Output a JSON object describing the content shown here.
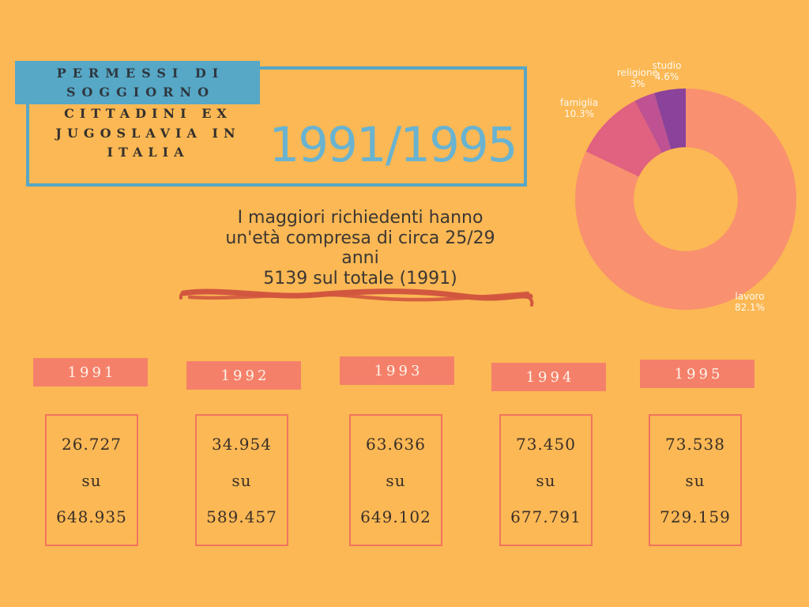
{
  "palette": {
    "background": "#FBB854",
    "blue": "#57A7C6",
    "period_blue": "#69B3D1",
    "salmon": "#F5806A",
    "box_border": "#F2745D",
    "brush_red": "#D2573F",
    "dark_text": "#3A332F"
  },
  "header": {
    "title_line1": "PERMESSI DI",
    "title_line2": "SOGGIORNO",
    "subtitle_line1": "CITTADINI EX",
    "subtitle_line2": "JUGOSLAVIA IN",
    "subtitle_line3": "ITALIA",
    "period": "1991/1995"
  },
  "highlight": {
    "line1": "I maggiori richiedenti hanno",
    "line2": "un'età compresa di circa 25/29",
    "line3": "anni",
    "line4": "5139 sul totale (1991)"
  },
  "chart_data": {
    "type": "pie",
    "donut": true,
    "inner_radius_ratio": 0.47,
    "start_angle_deg": 0,
    "direction": "clockwise",
    "legend": "none",
    "labels_position": "outside",
    "labels": [
      "lavoro",
      "famiglia",
      "religione",
      "studio"
    ],
    "values": [
      82.1,
      10.3,
      3,
      4.6
    ],
    "display_pcts": [
      "82.1%",
      "10.3%",
      "3%",
      "4.6%"
    ],
    "colors": [
      "#F9906F",
      "#E16180",
      "#BE5292",
      "#8A429B"
    ]
  },
  "years": [
    {
      "label": "1991",
      "value": "26.727",
      "su": "su",
      "total": "648.935"
    },
    {
      "label": "1992",
      "value": "34.954",
      "su": "su",
      "total": "589.457"
    },
    {
      "label": "1993",
      "value": "63.636",
      "su": "su",
      "total": "649.102"
    },
    {
      "label": "1994",
      "value": "73.450",
      "su": "su",
      "total": "677.791"
    },
    {
      "label": "1995",
      "value": "73.538",
      "su": "su",
      "total": "729.159"
    }
  ]
}
